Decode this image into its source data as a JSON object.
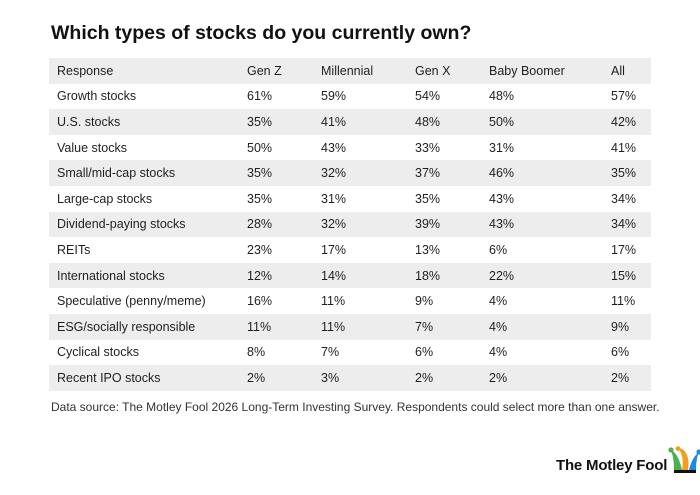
{
  "title": "Which types of stocks do you currently own?",
  "chart_data": {
    "type": "table",
    "columns": [
      "Response",
      "Gen Z",
      "Millennial",
      "Gen X",
      "Baby Boomer",
      "All"
    ],
    "rows": [
      [
        "Growth stocks",
        "61%",
        "59%",
        "54%",
        "48%",
        "57%"
      ],
      [
        "U.S. stocks",
        "35%",
        "41%",
        "48%",
        "50%",
        "42%"
      ],
      [
        "Value stocks",
        "50%",
        "43%",
        "33%",
        "31%",
        "41%"
      ],
      [
        "Small/mid-cap stocks",
        "35%",
        "32%",
        "37%",
        "46%",
        "35%"
      ],
      [
        "Large-cap stocks",
        "35%",
        "31%",
        "35%",
        "43%",
        "34%"
      ],
      [
        "Dividend-paying stocks",
        "28%",
        "32%",
        "39%",
        "43%",
        "34%"
      ],
      [
        "REITs",
        "23%",
        "17%",
        "13%",
        "6%",
        "17%"
      ],
      [
        "International stocks",
        "12%",
        "14%",
        "18%",
        "22%",
        "15%"
      ],
      [
        "Speculative (penny/meme)",
        "16%",
        "11%",
        "9%",
        "4%",
        "11%"
      ],
      [
        "ESG/socially responsible",
        "11%",
        "11%",
        "7%",
        "4%",
        "9%"
      ],
      [
        "Cyclical stocks",
        "8%",
        "7%",
        "6%",
        "4%",
        "6%"
      ],
      [
        "Recent IPO stocks",
        "2%",
        "3%",
        "2%",
        "2%",
        "2%"
      ]
    ],
    "stripe_color": "#ededed"
  },
  "footnote": "Data source: The Motley Fool 2026 Long-Term Investing Survey. Respondents could select more than one answer.",
  "brand": {
    "name": "The Motley Fool",
    "icon": "jester-hat-icon",
    "colors": {
      "green": "#4caf50",
      "orange": "#f59e1b",
      "blue": "#1e88e5"
    }
  }
}
